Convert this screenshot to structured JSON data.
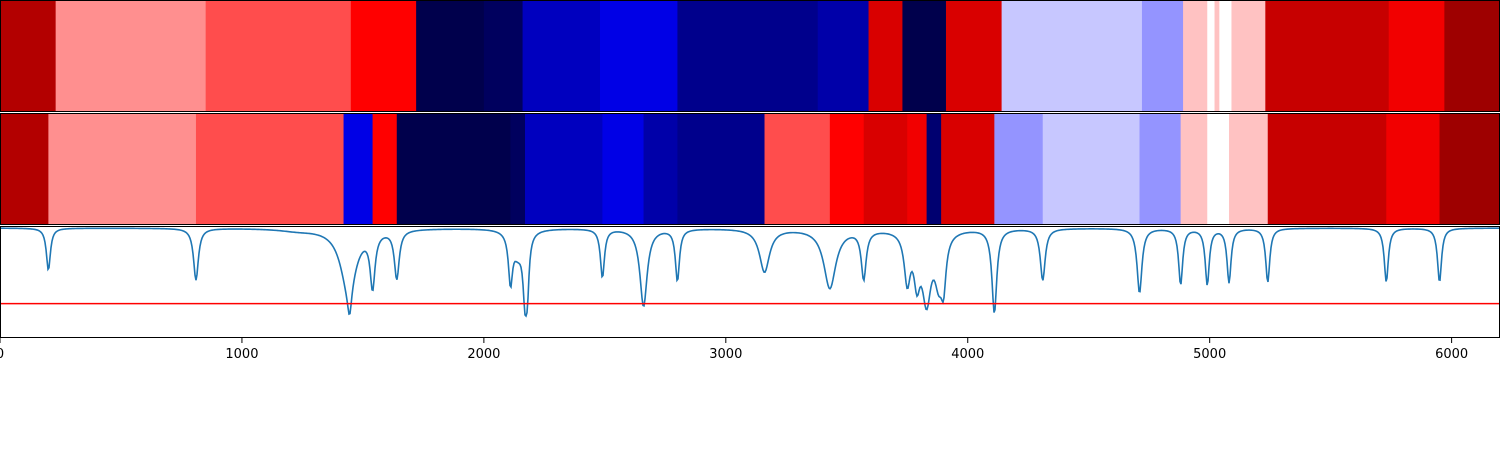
{
  "chart_data": [
    {
      "type": "heatmap",
      "colormap": "seismic",
      "x_domain": [
        0,
        6200
      ],
      "segments": [
        {
          "x0": 0,
          "x1": 230,
          "value": 0.8
        },
        {
          "x0": 230,
          "x1": 850,
          "value": 0.22
        },
        {
          "x0": 850,
          "x1": 1450,
          "value": 0.35
        },
        {
          "x0": 1450,
          "x1": 1720,
          "value": 0.5
        },
        {
          "x0": 1720,
          "x1": 2000,
          "value": -1.0
        },
        {
          "x0": 2000,
          "x1": 2160,
          "value": -0.95
        },
        {
          "x0": 2160,
          "x1": 2480,
          "value": -0.68
        },
        {
          "x0": 2480,
          "x1": 2800,
          "value": -0.57
        },
        {
          "x0": 2800,
          "x1": 3380,
          "value": -0.82
        },
        {
          "x0": 3380,
          "x1": 3590,
          "value": -0.74
        },
        {
          "x0": 3590,
          "x1": 3730,
          "value": 0.65
        },
        {
          "x0": 3730,
          "x1": 3910,
          "value": -1.0
        },
        {
          "x0": 3910,
          "x1": 4140,
          "value": 0.65
        },
        {
          "x0": 4140,
          "x1": 4720,
          "value": -0.11
        },
        {
          "x0": 4720,
          "x1": 4890,
          "value": -0.21
        },
        {
          "x0": 4890,
          "x1": 4990,
          "value": 0.12
        },
        {
          "x0": 4990,
          "x1": 5020,
          "value": 0.0
        },
        {
          "x0": 5020,
          "x1": 5040,
          "value": 0.12
        },
        {
          "x0": 5040,
          "x1": 5090,
          "value": 0.0
        },
        {
          "x0": 5090,
          "x1": 5230,
          "value": 0.12
        },
        {
          "x0": 5230,
          "x1": 5740,
          "value": 0.72
        },
        {
          "x0": 5740,
          "x1": 5970,
          "value": 0.55
        },
        {
          "x0": 5970,
          "x1": 6200,
          "value": 0.88
        }
      ]
    },
    {
      "type": "heatmap",
      "colormap": "seismic",
      "x_domain": [
        0,
        6200
      ],
      "segments": [
        {
          "x0": 0,
          "x1": 200,
          "value": 0.8
        },
        {
          "x0": 200,
          "x1": 810,
          "value": 0.22
        },
        {
          "x0": 810,
          "x1": 1420,
          "value": 0.35
        },
        {
          "x0": 1420,
          "x1": 1540,
          "value": -0.57
        },
        {
          "x0": 1540,
          "x1": 1640,
          "value": 0.5
        },
        {
          "x0": 1640,
          "x1": 2110,
          "value": -1.0
        },
        {
          "x0": 2110,
          "x1": 2170,
          "value": -0.95
        },
        {
          "x0": 2170,
          "x1": 2490,
          "value": -0.68
        },
        {
          "x0": 2490,
          "x1": 2660,
          "value": -0.57
        },
        {
          "x0": 2660,
          "x1": 2800,
          "value": -0.74
        },
        {
          "x0": 2800,
          "x1": 3160,
          "value": -0.82
        },
        {
          "x0": 3160,
          "x1": 3430,
          "value": 0.35
        },
        {
          "x0": 3430,
          "x1": 3570,
          "value": 0.5
        },
        {
          "x0": 3570,
          "x1": 3750,
          "value": 0.65
        },
        {
          "x0": 3750,
          "x1": 3830,
          "value": 0.55
        },
        {
          "x0": 3830,
          "x1": 3890,
          "value": -0.9
        },
        {
          "x0": 3890,
          "x1": 4110,
          "value": 0.65
        },
        {
          "x0": 4110,
          "x1": 4310,
          "value": -0.21
        },
        {
          "x0": 4310,
          "x1": 4710,
          "value": -0.11
        },
        {
          "x0": 4710,
          "x1": 4880,
          "value": -0.21
        },
        {
          "x0": 4880,
          "x1": 4990,
          "value": 0.12
        },
        {
          "x0": 4990,
          "x1": 5080,
          "value": 0.0
        },
        {
          "x0": 5080,
          "x1": 5240,
          "value": 0.12
        },
        {
          "x0": 5240,
          "x1": 5730,
          "value": 0.72
        },
        {
          "x0": 5730,
          "x1": 5950,
          "value": 0.55
        },
        {
          "x0": 5950,
          "x1": 6200,
          "value": 0.88
        }
      ]
    },
    {
      "type": "line",
      "x_domain": [
        0,
        6200
      ],
      "y_domain": [
        0,
        1
      ],
      "xticks": [
        0,
        1000,
        2000,
        3000,
        4000,
        5000,
        6000
      ],
      "xtick_labels": [
        "0",
        "1000",
        "2000",
        "3000",
        "4000",
        "5000",
        "6000"
      ],
      "grid": false,
      "series_color": "#1f77b4",
      "baseline": 1.0,
      "dips": [
        {
          "center": 200,
          "depth": 0.39,
          "width": 10
        },
        {
          "center": 810,
          "depth": 0.48,
          "width": 12
        },
        {
          "center": 1230,
          "depth": 0.02,
          "width": 90
        },
        {
          "center": 1440,
          "depth": 0.55,
          "width": 40
        },
        {
          "center": 1445,
          "depth": 0.25,
          "width": 10
        },
        {
          "center": 1540,
          "depth": 0.5,
          "width": 12
        },
        {
          "center": 1640,
          "depth": 0.45,
          "width": 12
        },
        {
          "center": 2110,
          "depth": 0.45,
          "width": 10
        },
        {
          "center": 2140,
          "depth": 0.2,
          "width": 25
        },
        {
          "center": 2170,
          "depth": 0.55,
          "width": 10
        },
        {
          "center": 2180,
          "depth": 0.4,
          "width": 8
        },
        {
          "center": 2490,
          "depth": 0.45,
          "width": 10
        },
        {
          "center": 2660,
          "depth": 0.72,
          "width": 18
        },
        {
          "center": 2800,
          "depth": 0.48,
          "width": 10
        },
        {
          "center": 3160,
          "depth": 0.4,
          "width": 25
        },
        {
          "center": 3430,
          "depth": 0.55,
          "width": 30
        },
        {
          "center": 3570,
          "depth": 0.45,
          "width": 12
        },
        {
          "center": 3750,
          "depth": 0.45,
          "width": 15
        },
        {
          "center": 3790,
          "depth": 0.4,
          "width": 15
        },
        {
          "center": 3830,
          "depth": 0.62,
          "width": 22
        },
        {
          "center": 3880,
          "depth": 0.4,
          "width": 20
        },
        {
          "center": 3900,
          "depth": 0.4,
          "width": 12
        },
        {
          "center": 4110,
          "depth": 0.78,
          "width": 12
        },
        {
          "center": 4310,
          "depth": 0.48,
          "width": 12
        },
        {
          "center": 4710,
          "depth": 0.6,
          "width": 12
        },
        {
          "center": 4880,
          "depth": 0.52,
          "width": 10
        },
        {
          "center": 4990,
          "depth": 0.52,
          "width": 10
        },
        {
          "center": 5080,
          "depth": 0.5,
          "width": 10
        },
        {
          "center": 5240,
          "depth": 0.5,
          "width": 10
        },
        {
          "center": 5730,
          "depth": 0.5,
          "width": 10
        },
        {
          "center": 5950,
          "depth": 0.5,
          "width": 10
        }
      ],
      "threshold": {
        "value": 0.3,
        "color": "#ff0000"
      }
    }
  ]
}
